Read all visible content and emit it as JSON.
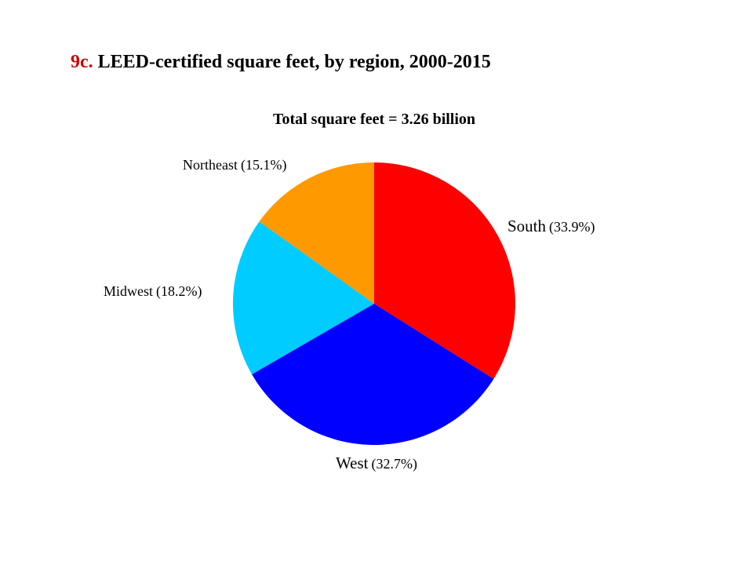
{
  "slide": {
    "title_number": "9c.",
    "title_text": "LEED-certified square feet, by region, 2000-2015"
  },
  "colors": {
    "title_number": "#cc0000",
    "south": "#ff0000",
    "west": "#0000ff",
    "midwest": "#00ccff",
    "northeast": "#ff9900"
  },
  "chart_data": {
    "type": "pie",
    "title": "Total square feet = 3.26 billion",
    "start_angle": "12 o'clock",
    "direction": "clockwise",
    "slices": [
      {
        "label": "South",
        "value": 33.9,
        "display": "(33.9%)",
        "color": "#ff0000"
      },
      {
        "label": "West",
        "value": 32.7,
        "display": "(32.7%)",
        "color": "#0000ff"
      },
      {
        "label": "Midwest",
        "value": 18.2,
        "display": "(18.2%)",
        "color": "#00ccff"
      },
      {
        "label": "Northeast",
        "value": 15.1,
        "display": "(15.1%)",
        "color": "#ff9900"
      }
    ]
  }
}
